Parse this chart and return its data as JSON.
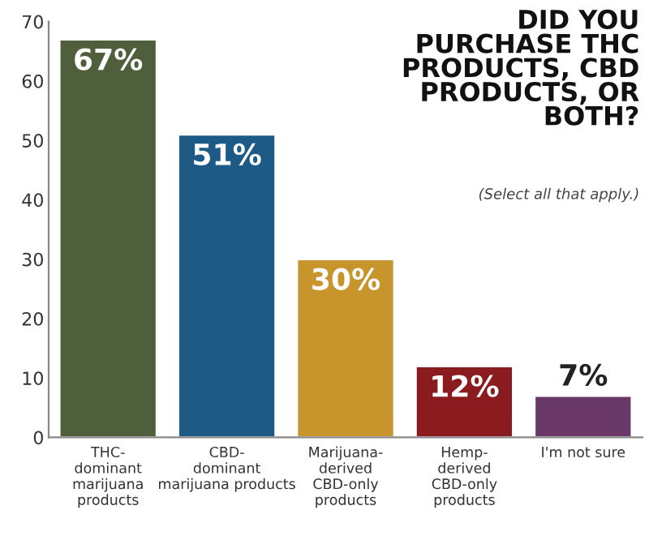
{
  "chart_data": {
    "type": "bar",
    "title": "DID YOU\nPURCHASE THC\nPRODUCTS, CBD\nPRODUCTS, OR\nBOTH?",
    "subtitle": "(Select all that apply.)",
    "categories": [
      "THC-\ndominant\nmarijuana\nproducts",
      "CBD-\ndominant\nmarijuana products",
      "Marijuana-\nderived\nCBD-only\nproducts",
      "Hemp-\nderived\nCBD-only\nproducts",
      "I'm not sure"
    ],
    "values": [
      67,
      51,
      30,
      12,
      7
    ],
    "colors": [
      "#4f5f3b",
      "#1d5a86",
      "#c8952c",
      "#8a1c20",
      "#6a3868"
    ],
    "value_labels": [
      "67%",
      "51%",
      "30%",
      "12%",
      "7%"
    ],
    "ylim": [
      0,
      70
    ],
    "yticks": [
      0,
      10,
      20,
      30,
      40,
      50,
      60,
      70
    ],
    "grid": false,
    "legend": false
  }
}
